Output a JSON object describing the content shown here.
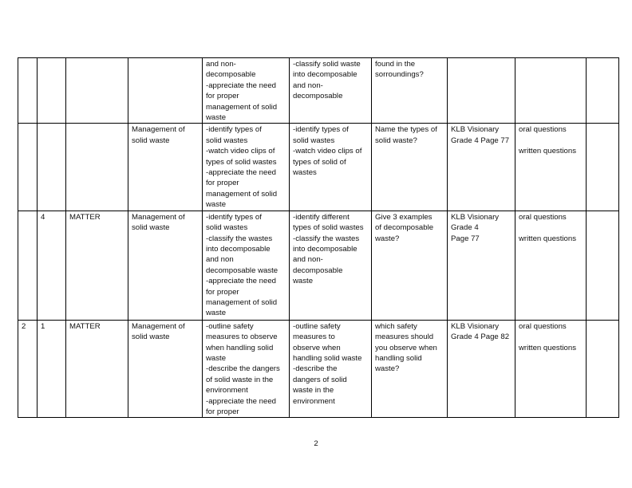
{
  "rows": [
    [
      "",
      "",
      "",
      "",
      "and non-\ndecomposable\n-appreciate the need\nfor proper\nmanagement of solid\nwaste",
      "-classify solid waste\ninto decomposable\nand non-\ndecomposable",
      "found in the\nsorroundings?",
      "",
      "",
      ""
    ],
    [
      "",
      "",
      "",
      "Management of\nsolid waste",
      "-identify types of\nsolid wastes\n-watch video clips of\ntypes of solid wastes\n-appreciate the need\nfor proper\nmanagement of solid\nwaste",
      "-identify types of\nsolid  wastes\n-watch video clips of\ntypes of  solid of\nwastes",
      "Name the types of\nsolid waste?",
      "KLB Visionary\nGrade 4 Page 77",
      "oral questions\n\nwritten questions",
      ""
    ],
    [
      "",
      "4",
      "MATTER",
      "Management of\nsolid waste",
      "-identify types of\nsolid wastes\n-classify the wastes\ninto decomposable\nand non\ndecomposable waste\n-appreciate the need\nfor proper\nmanagement of solid\nwaste",
      "-identify different\ntypes of solid wastes\n-classify the wastes\ninto decomposable\nand non-\ndecomposable\nwaste",
      "Give 3 examples\nof decomposable\nwaste?",
      "KLB Visionary\nGrade 4\nPage 77",
      "oral questions\n\nwritten questions",
      ""
    ],
    [
      "2",
      "1",
      "MATTER",
      "Management of\nsolid waste",
      "-outline safety\nmeasures to observe\nwhen handling solid\nwaste\n-describe the dangers\nof solid waste  in the\nenvironment\n-appreciate the need\nfor proper",
      "-outline safety\nmeasures to\nobserve when\nhandling solid waste\n-describe the\ndangers of solid\nwaste  in the\nenvironment",
      "which safety\nmeasures should\nyou observe when\nhandling solid\nwaste?",
      "KLB Visionary\nGrade 4 Page 82",
      "oral questions\n\nwritten questions",
      ""
    ]
  ],
  "page_number": "2"
}
